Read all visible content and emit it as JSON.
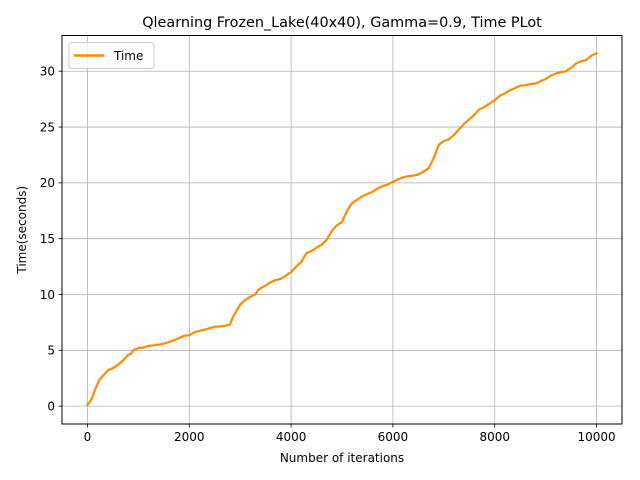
{
  "chart_data": {
    "type": "line",
    "title": "Qlearning Frozen_Lake(40x40),  Gamma=0.9, Time PLot",
    "xlabel": "Number of iterations",
    "ylabel": "Time(seconds)",
    "xlim": [
      -500,
      10500
    ],
    "ylim": [
      -1.6,
      33.2
    ],
    "xticks": [
      0,
      2000,
      4000,
      6000,
      8000,
      10000
    ],
    "xtick_labels": [
      "0",
      "2000",
      "4000",
      "6000",
      "8000",
      "10000"
    ],
    "yticks": [
      0,
      5,
      10,
      15,
      20,
      25,
      30
    ],
    "ytick_labels": [
      "0",
      "5",
      "10",
      "15",
      "20",
      "25",
      "30"
    ],
    "grid": true,
    "legend_position": "upper-left",
    "series": [
      {
        "name": "Time",
        "color": "#ff8c00",
        "x": [
          0,
          80,
          160,
          240,
          300,
          400,
          500,
          600,
          700,
          800,
          860,
          900,
          1000,
          1100,
          1200,
          1300,
          1400,
          1500,
          1600,
          1700,
          1800,
          1900,
          2000,
          2100,
          2200,
          2300,
          2400,
          2500,
          2600,
          2700,
          2800,
          2850,
          2900,
          3000,
          3100,
          3200,
          3300,
          3350,
          3400,
          3500,
          3600,
          3700,
          3800,
          3900,
          4000,
          4100,
          4200,
          4300,
          4400,
          4500,
          4600,
          4700,
          4800,
          4900,
          5000,
          5050,
          5100,
          5200,
          5300,
          5400,
          5500,
          5600,
          5700,
          5800,
          5900,
          6000,
          6100,
          6200,
          6300,
          6400,
          6500,
          6600,
          6700,
          6800,
          6850,
          6900,
          7000,
          7100,
          7200,
          7300,
          7400,
          7500,
          7600,
          7700,
          7800,
          7900,
          8000,
          8100,
          8200,
          8300,
          8400,
          8500,
          8600,
          8700,
          8800,
          8900,
          9000,
          9100,
          9200,
          9300,
          9400,
          9500,
          9600,
          9700,
          9800,
          9900,
          10000
        ],
        "y": [
          0.1,
          0.6,
          1.6,
          2.4,
          2.7,
          3.2,
          3.4,
          3.7,
          4.1,
          4.6,
          4.7,
          5.0,
          5.2,
          5.25,
          5.4,
          5.45,
          5.5,
          5.6,
          5.75,
          5.9,
          6.1,
          6.3,
          6.35,
          6.6,
          6.75,
          6.85,
          7.0,
          7.1,
          7.15,
          7.2,
          7.3,
          7.9,
          8.3,
          9.1,
          9.5,
          9.8,
          10.0,
          10.4,
          10.55,
          10.8,
          11.1,
          11.3,
          11.4,
          11.7,
          12.0,
          12.5,
          12.9,
          13.7,
          13.9,
          14.2,
          14.45,
          14.9,
          15.7,
          16.2,
          16.5,
          17.0,
          17.5,
          18.2,
          18.5,
          18.8,
          19.0,
          19.2,
          19.5,
          19.7,
          19.85,
          20.1,
          20.3,
          20.5,
          20.6,
          20.65,
          20.75,
          21.0,
          21.3,
          22.2,
          22.8,
          23.4,
          23.75,
          23.9,
          24.3,
          24.8,
          25.3,
          25.7,
          26.1,
          26.6,
          26.8,
          27.1,
          27.4,
          27.8,
          28.0,
          28.3,
          28.5,
          28.7,
          28.75,
          28.85,
          28.9,
          29.1,
          29.3,
          29.6,
          29.8,
          29.9,
          30.0,
          30.3,
          30.7,
          30.9,
          31.0,
          31.4,
          31.6
        ]
      }
    ]
  }
}
